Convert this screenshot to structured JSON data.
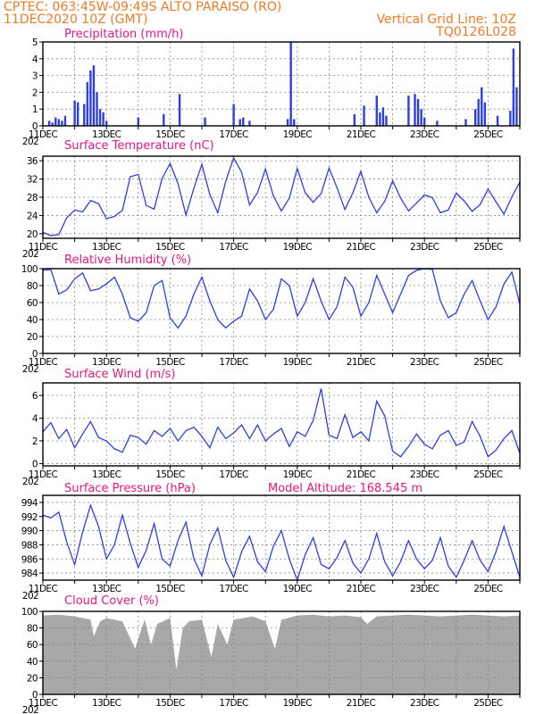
{
  "header": {
    "line1": "CPTEC:  063:45W-09:49S  ALTO PARAISO (RO)",
    "line2": "11DEC2020 10Z (GMT)",
    "grid_note": "Vertical Grid Line: 10Z",
    "code": "TQ0126L028"
  },
  "colors": {
    "header": "#f07a24",
    "title": "#e8177a",
    "series": "#2d3fe0",
    "cloud": "#a8a8a8"
  },
  "x_axis": {
    "start_day": 11,
    "end_day": 26,
    "labels": [
      {
        "day": 11,
        "text": "11DEC"
      },
      {
        "day": 13,
        "text": "13DEC"
      },
      {
        "day": 15,
        "text": "15DEC"
      },
      {
        "day": 17,
        "text": "17DEC"
      },
      {
        "day": 19,
        "text": "19DEC"
      },
      {
        "day": 21,
        "text": "21DEC"
      },
      {
        "day": 23,
        "text": "23DEC"
      },
      {
        "day": 25,
        "text": "25DEC"
      }
    ],
    "year_stub": "202"
  },
  "chart_data": [
    {
      "id": "precip",
      "type": "bar",
      "title": "Precipitation (mm/h)",
      "ylim": [
        0,
        5
      ],
      "yticks": [
        0,
        1,
        2,
        3,
        4,
        5
      ],
      "x": [
        11.2,
        11.3,
        11.4,
        11.5,
        11.6,
        11.7,
        12.0,
        12.1,
        12.3,
        12.4,
        12.5,
        12.6,
        12.7,
        12.8,
        12.9,
        13.0,
        14.0,
        14.8,
        15.3,
        16.1,
        17.0,
        17.2,
        17.3,
        17.5,
        18.7,
        18.8,
        18.9,
        20.8,
        21.1,
        21.5,
        21.6,
        21.7,
        21.8,
        22.5,
        22.7,
        22.8,
        22.9,
        23.0,
        23.4,
        24.3,
        24.6,
        24.7,
        24.8,
        24.9,
        25.3,
        25.7,
        25.8,
        25.9
      ],
      "values": [
        0.3,
        0.2,
        0.5,
        0.4,
        0.3,
        0.6,
        1.5,
        1.4,
        1.3,
        2.6,
        3.3,
        3.6,
        2.0,
        1.0,
        0.8,
        0.3,
        0.5,
        0.7,
        1.9,
        0.5,
        1.3,
        0.4,
        0.5,
        0.3,
        0.4,
        5.0,
        0.4,
        0.7,
        1.2,
        1.8,
        0.8,
        1.1,
        0.6,
        1.8,
        1.9,
        1.6,
        1.0,
        0.5,
        0.3,
        0.4,
        1.0,
        1.6,
        2.3,
        1.4,
        0.6,
        0.9,
        4.6,
        2.3
      ]
    },
    {
      "id": "temp",
      "type": "line",
      "title": "Surface Temperature (nC)",
      "ylim": [
        19,
        37
      ],
      "yticks": [
        20,
        24,
        28,
        32,
        36
      ],
      "x": [
        11.0,
        11.25,
        11.5,
        11.75,
        12.0,
        12.25,
        12.5,
        12.75,
        13.0,
        13.25,
        13.5,
        13.75,
        14.0,
        14.25,
        14.5,
        14.75,
        15.0,
        15.25,
        15.5,
        15.75,
        16.0,
        16.25,
        16.5,
        16.75,
        17.0,
        17.25,
        17.5,
        17.75,
        18.0,
        18.25,
        18.5,
        18.75,
        19.0,
        19.25,
        19.5,
        19.75,
        20.0,
        20.25,
        20.5,
        20.75,
        21.0,
        21.25,
        21.5,
        21.75,
        22.0,
        22.25,
        22.5,
        22.75,
        23.0,
        23.25,
        23.5,
        23.75,
        24.0,
        24.25,
        24.5,
        24.75,
        25.0,
        25.25,
        25.5,
        25.75,
        26.0
      ],
      "values": [
        20.3,
        19.6,
        19.8,
        23.5,
        25.2,
        24.8,
        27.3,
        26.6,
        23.3,
        23.8,
        25.1,
        32.5,
        33.0,
        26.2,
        25.4,
        32.1,
        35.4,
        31.0,
        24.1,
        30.0,
        35.2,
        28.6,
        24.6,
        31.5,
        36.6,
        33.5,
        26.3,
        29.0,
        34.2,
        28.3,
        25.0,
        27.8,
        34.3,
        29.0,
        26.9,
        28.8,
        34.4,
        30.1,
        25.3,
        29.0,
        33.7,
        28.0,
        24.6,
        27.1,
        31.6,
        27.8,
        25.0,
        26.7,
        28.5,
        27.9,
        24.6,
        25.2,
        28.9,
        27.2,
        24.9,
        26.4,
        29.8,
        27.0,
        24.3,
        28.1,
        31.3
      ]
    },
    {
      "id": "rh",
      "type": "line",
      "title": "Relative Humidity (%)",
      "ylim": [
        0,
        100
      ],
      "yticks": [
        0,
        20,
        40,
        60,
        80,
        100
      ],
      "x": [
        11.0,
        11.25,
        11.5,
        11.75,
        12.0,
        12.25,
        12.5,
        12.75,
        13.0,
        13.25,
        13.5,
        13.75,
        14.0,
        14.25,
        14.5,
        14.75,
        15.0,
        15.25,
        15.5,
        15.75,
        16.0,
        16.25,
        16.5,
        16.75,
        17.0,
        17.25,
        17.5,
        17.75,
        18.0,
        18.25,
        18.5,
        18.75,
        19.0,
        19.25,
        19.5,
        19.75,
        20.0,
        20.25,
        20.5,
        20.75,
        21.0,
        21.25,
        21.5,
        21.75,
        22.0,
        22.25,
        22.5,
        22.75,
        23.0,
        23.25,
        23.5,
        23.75,
        24.0,
        24.25,
        24.5,
        24.75,
        25.0,
        25.25,
        25.5,
        25.75,
        26.0
      ],
      "values": [
        98,
        99,
        70,
        75,
        88,
        95,
        74,
        76,
        82,
        90,
        70,
        42,
        38,
        48,
        80,
        86,
        42,
        30,
        44,
        70,
        90,
        62,
        40,
        30,
        38,
        44,
        76,
        62,
        40,
        52,
        88,
        80,
        44,
        60,
        88,
        62,
        40,
        55,
        90,
        78,
        44,
        60,
        92,
        70,
        48,
        70,
        92,
        98,
        100,
        99,
        62,
        42,
        48,
        70,
        86,
        62,
        40,
        55,
        82,
        96,
        58
      ]
    },
    {
      "id": "wind",
      "type": "line",
      "title": "Surface Wind (m/s)",
      "ylim": [
        -0.2,
        7.1
      ],
      "yticks": [
        0,
        2,
        4,
        6
      ],
      "x": [
        11.0,
        11.25,
        11.5,
        11.75,
        12.0,
        12.25,
        12.5,
        12.75,
        13.0,
        13.25,
        13.5,
        13.75,
        14.0,
        14.25,
        14.5,
        14.75,
        15.0,
        15.25,
        15.5,
        15.75,
        16.0,
        16.25,
        16.5,
        16.75,
        17.0,
        17.25,
        17.5,
        17.75,
        18.0,
        18.25,
        18.5,
        18.75,
        19.0,
        19.25,
        19.5,
        19.75,
        20.0,
        20.25,
        20.5,
        20.75,
        21.0,
        21.25,
        21.5,
        21.75,
        22.0,
        22.25,
        22.5,
        22.75,
        23.0,
        23.25,
        23.5,
        23.75,
        24.0,
        24.25,
        24.5,
        24.75,
        25.0,
        25.25,
        25.5,
        25.75,
        26.0
      ],
      "values": [
        2.8,
        3.6,
        2.2,
        3.0,
        1.4,
        2.6,
        3.7,
        2.3,
        2.0,
        1.3,
        1.0,
        2.5,
        2.3,
        1.7,
        2.9,
        2.4,
        3.1,
        2.0,
        2.9,
        3.2,
        2.4,
        1.4,
        3.2,
        2.2,
        2.7,
        3.4,
        2.2,
        3.4,
        2.0,
        2.6,
        3.1,
        1.5,
        2.8,
        2.4,
        3.8,
        6.6,
        2.5,
        2.2,
        4.3,
        2.3,
        2.8,
        2.0,
        5.5,
        4.2,
        1.1,
        0.6,
        1.5,
        2.6,
        1.7,
        1.3,
        2.5,
        2.9,
        1.6,
        1.9,
        3.7,
        2.4,
        0.6,
        1.2,
        2.2,
        2.9,
        0.9
      ]
    },
    {
      "id": "pres",
      "type": "line",
      "title": "Surface Pressure (hPa)",
      "annotation": "Model Altitude: 168.545 m",
      "ylim": [
        983.0,
        995.0
      ],
      "yticks": [
        984,
        986,
        988,
        990,
        992,
        994
      ],
      "x": [
        11.0,
        11.25,
        11.5,
        11.75,
        12.0,
        12.25,
        12.5,
        12.75,
        13.0,
        13.25,
        13.5,
        13.75,
        14.0,
        14.25,
        14.5,
        14.75,
        15.0,
        15.25,
        15.5,
        15.75,
        16.0,
        16.25,
        16.5,
        16.75,
        17.0,
        17.25,
        17.5,
        17.75,
        18.0,
        18.25,
        18.5,
        18.75,
        19.0,
        19.25,
        19.5,
        19.75,
        20.0,
        20.25,
        20.5,
        20.75,
        21.0,
        21.25,
        21.5,
        21.75,
        22.0,
        22.25,
        22.5,
        22.75,
        23.0,
        23.25,
        23.5,
        23.75,
        24.0,
        24.25,
        24.5,
        24.75,
        25.0,
        25.25,
        25.5,
        25.75,
        26.0
      ],
      "values": [
        992.2,
        991.8,
        992.6,
        988.4,
        985.2,
        989.8,
        993.6,
        990.6,
        986.0,
        988.0,
        992.2,
        988.2,
        984.8,
        987.2,
        991.0,
        986.0,
        985.0,
        988.6,
        991.2,
        986.0,
        983.6,
        988.0,
        990.4,
        985.8,
        983.4,
        987.0,
        989.2,
        985.6,
        984.2,
        987.8,
        990.0,
        986.0,
        983.0,
        986.6,
        989.0,
        985.2,
        984.6,
        986.2,
        988.6,
        985.4,
        984.0,
        986.0,
        989.6,
        985.6,
        983.6,
        985.6,
        988.6,
        986.0,
        984.6,
        985.8,
        989.0,
        985.0,
        983.4,
        985.8,
        988.6,
        985.8,
        984.2,
        987.0,
        990.6,
        987.0,
        983.4
      ]
    },
    {
      "id": "cloud",
      "type": "area",
      "title": "Cloud Cover (%)",
      "ylim": [
        0,
        100
      ],
      "yticks": [
        0,
        20,
        40,
        60,
        80,
        100
      ],
      "x": [
        11.0,
        11.5,
        12.0,
        12.5,
        12.6,
        12.8,
        13.0,
        13.5,
        13.9,
        14.2,
        14.4,
        14.6,
        15.0,
        15.2,
        15.4,
        15.6,
        16.0,
        16.3,
        16.5,
        16.8,
        17.0,
        17.3,
        17.6,
        18.0,
        18.3,
        18.5,
        18.7,
        19.0,
        19.5,
        20.0,
        20.5,
        21.0,
        21.2,
        21.5,
        22.0,
        22.5,
        23.0,
        23.5,
        24.0,
        24.5,
        25.0,
        25.5,
        26.0
      ],
      "values": [
        95,
        96,
        94,
        90,
        70,
        88,
        92,
        88,
        55,
        90,
        60,
        85,
        92,
        30,
        80,
        88,
        90,
        45,
        85,
        60,
        90,
        92,
        94,
        88,
        55,
        90,
        92,
        95,
        96,
        94,
        95,
        93,
        85,
        94,
        95,
        96,
        95,
        94,
        95,
        96,
        95,
        94,
        95
      ]
    }
  ]
}
